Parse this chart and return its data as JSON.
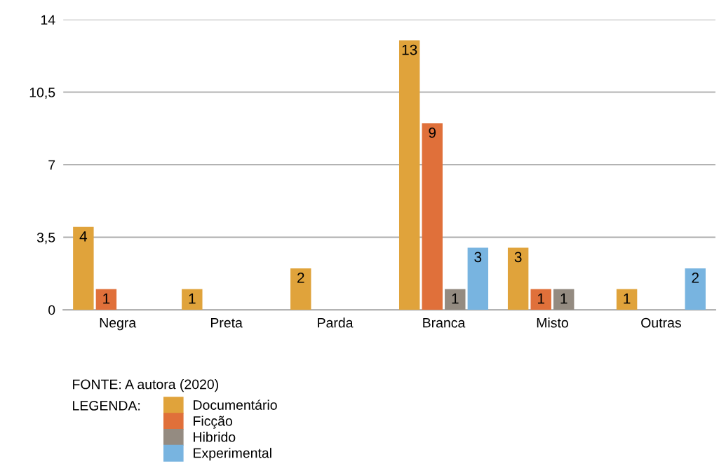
{
  "chart_data": {
    "type": "bar",
    "categories": [
      "Negra",
      "Preta",
      "Parda",
      "Branca",
      "Misto",
      "Outras"
    ],
    "series": [
      {
        "name": "Documentário",
        "color": "#e0a33b",
        "values": [
          4,
          1,
          2,
          13,
          3,
          1
        ]
      },
      {
        "name": "Ficção",
        "color": "#e0703a",
        "values": [
          1,
          null,
          null,
          9,
          1,
          null
        ]
      },
      {
        "name": "Hibrido",
        "color": "#948b81",
        "values": [
          null,
          null,
          null,
          1,
          1,
          null
        ]
      },
      {
        "name": "Experimental",
        "color": "#78b4e0",
        "values": [
          null,
          null,
          null,
          3,
          null,
          2
        ]
      }
    ],
    "ylim": [
      0,
      14
    ],
    "yticks": [
      0,
      {
        "value": 3.5,
        "label": "3,5"
      },
      7,
      {
        "value": 10.5,
        "label": "10,5"
      },
      14
    ],
    "grid": "y",
    "data_labels": true,
    "legend": "bottom",
    "legend_title": "LEGENDA:",
    "annotations": [
      "FONTE: A autora (2020)"
    ]
  }
}
